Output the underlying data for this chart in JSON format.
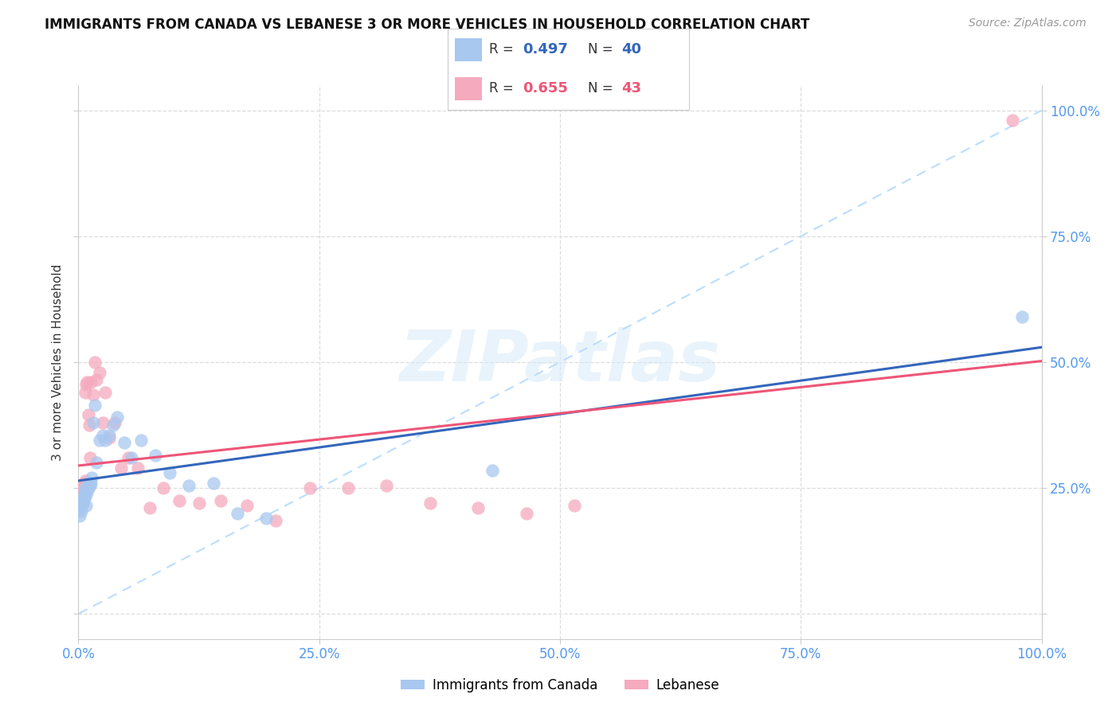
{
  "title": "IMMIGRANTS FROM CANADA VS LEBANESE 3 OR MORE VEHICLES IN HOUSEHOLD CORRELATION CHART",
  "source": "Source: ZipAtlas.com",
  "ylabel": "3 or more Vehicles in Household",
  "xlim": [
    0.0,
    1.0
  ],
  "ylim": [
    -0.05,
    1.05
  ],
  "plot_ylim": [
    0.0,
    1.0
  ],
  "xticks": [
    0.0,
    0.25,
    0.5,
    0.75,
    1.0
  ],
  "yticks": [
    0.0,
    0.25,
    0.5,
    0.75,
    1.0
  ],
  "xtick_labels": [
    "0.0%",
    "25.0%",
    "50.0%",
    "75.0%",
    "100.0%"
  ],
  "right_ytick_labels": [
    "",
    "25.0%",
    "50.0%",
    "75.0%",
    "100.0%"
  ],
  "r_canada": 0.497,
  "n_canada": 40,
  "r_lebanese": 0.655,
  "n_lebanese": 43,
  "canada_color": "#A8C8F0",
  "lebanese_color": "#F5AABE",
  "canada_line_color": "#3366BB",
  "lebanese_line_color": "#EE5577",
  "diagonal_color": "#BBDDFF",
  "background_color": "#FFFFFF",
  "grid_color": "#DDDDDD",
  "tick_color": "#5599EE",
  "canada_x": [
    0.001,
    0.002,
    0.003,
    0.003,
    0.004,
    0.004,
    0.005,
    0.005,
    0.006,
    0.006,
    0.007,
    0.007,
    0.008,
    0.008,
    0.009,
    0.01,
    0.011,
    0.012,
    0.013,
    0.014,
    0.015,
    0.017,
    0.019,
    0.022,
    0.025,
    0.028,
    0.032,
    0.036,
    0.04,
    0.048,
    0.055,
    0.065,
    0.08,
    0.095,
    0.115,
    0.14,
    0.165,
    0.195,
    0.43,
    0.98
  ],
  "canada_y": [
    0.195,
    0.21,
    0.205,
    0.22,
    0.215,
    0.225,
    0.23,
    0.22,
    0.23,
    0.24,
    0.235,
    0.25,
    0.215,
    0.245,
    0.24,
    0.25,
    0.26,
    0.255,
    0.26,
    0.27,
    0.38,
    0.415,
    0.3,
    0.345,
    0.355,
    0.345,
    0.355,
    0.375,
    0.39,
    0.34,
    0.31,
    0.345,
    0.315,
    0.28,
    0.255,
    0.26,
    0.2,
    0.19,
    0.285,
    0.59
  ],
  "lebanese_x": [
    0.001,
    0.002,
    0.003,
    0.003,
    0.004,
    0.004,
    0.005,
    0.005,
    0.006,
    0.007,
    0.007,
    0.008,
    0.009,
    0.01,
    0.011,
    0.012,
    0.013,
    0.015,
    0.017,
    0.019,
    0.022,
    0.025,
    0.028,
    0.032,
    0.038,
    0.044,
    0.052,
    0.062,
    0.074,
    0.088,
    0.105,
    0.125,
    0.148,
    0.175,
    0.205,
    0.24,
    0.28,
    0.32,
    0.365,
    0.415,
    0.465,
    0.515,
    0.97
  ],
  "lebanese_y": [
    0.215,
    0.225,
    0.22,
    0.23,
    0.235,
    0.225,
    0.24,
    0.25,
    0.26,
    0.265,
    0.44,
    0.455,
    0.46,
    0.395,
    0.375,
    0.31,
    0.46,
    0.435,
    0.5,
    0.465,
    0.48,
    0.38,
    0.44,
    0.35,
    0.38,
    0.29,
    0.31,
    0.29,
    0.21,
    0.25,
    0.225,
    0.22,
    0.225,
    0.215,
    0.185,
    0.25,
    0.25,
    0.255,
    0.22,
    0.21,
    0.2,
    0.215,
    0.98
  ]
}
